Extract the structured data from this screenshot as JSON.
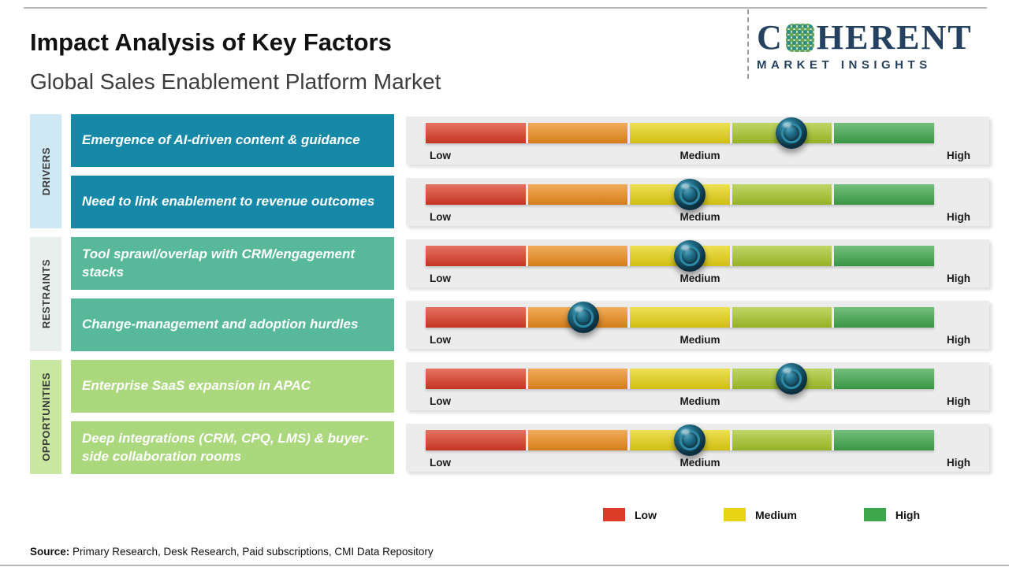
{
  "header": {
    "title": "Impact Analysis of Key Factors",
    "subtitle": "Global Sales Enablement Platform Market"
  },
  "logo": {
    "word_start": "C",
    "word_end": "HERENT",
    "tagline": "MARKET INSIGHTS",
    "brand_color": "#24415f"
  },
  "scale": {
    "low": "Low",
    "medium": "Medium",
    "high": "High"
  },
  "bar_colors": [
    "#dc3b26",
    "#ec8c1b",
    "#e8d414",
    "#a7c62a",
    "#3ea74b"
  ],
  "categories": [
    {
      "label": "DRIVERS",
      "strip_color": "#cfe9f4"
    },
    {
      "label": "RESTRAINTS",
      "strip_color": "#e9efec"
    },
    {
      "label": "OPPORTUNITIES",
      "strip_color": "#c9e7a1"
    }
  ],
  "rows": [
    {
      "group": "DRIVERS",
      "label": "Emergence of AI-driven content & guidance",
      "box_color": "#1789a8",
      "impact_pct": 72,
      "impact_level": "Medium-High"
    },
    {
      "group": "DRIVERS",
      "label": "Need to link enablement to revenue outcomes",
      "box_color": "#1789a8",
      "impact_pct": 52,
      "impact_level": "Medium"
    },
    {
      "group": "RESTRAINTS",
      "label": "Tool sprawl/overlap with CRM/engagement stacks",
      "box_color": "#57b999",
      "impact_pct": 52,
      "impact_level": "Medium"
    },
    {
      "group": "RESTRAINTS",
      "label": "Change-management and adoption hurdles",
      "box_color": "#57b999",
      "impact_pct": 31,
      "impact_level": "Low-Medium"
    },
    {
      "group": "OPPORTUNITIES",
      "label": "Enterprise SaaS expansion in APAC",
      "box_color": "#abd77d",
      "impact_pct": 72,
      "impact_level": "Medium-High"
    },
    {
      "group": "OPPORTUNITIES",
      "label": "Deep integrations (CRM, CPQ, LMS) & buyer-side collaboration rooms",
      "box_color": "#abd77d",
      "impact_pct": 52,
      "impact_level": "Medium"
    }
  ],
  "legend": [
    {
      "label": "Low",
      "color": "#dc3b26"
    },
    {
      "label": "Medium",
      "color": "#e8d414"
    },
    {
      "label": "High",
      "color": "#3ea74b"
    }
  ],
  "source": {
    "label": "Source:",
    "text": " Primary Research, Desk Research, Paid subscriptions, CMI Data Repository"
  },
  "chart_data": {
    "type": "bar",
    "subtype": "impact-scale",
    "title": "Impact Analysis of Key Factors",
    "subtitle": "Global Sales Enablement Platform Market",
    "scale_labels": [
      "Low",
      "Medium",
      "High"
    ],
    "axis_range_pct": [
      0,
      100
    ],
    "categories": [
      "Emergence of AI-driven content & guidance",
      "Need to link enablement to revenue outcomes",
      "Tool sprawl/overlap with CRM/engagement stacks",
      "Change-management and adoption hurdles",
      "Enterprise SaaS expansion in APAC",
      "Deep integrations (CRM, CPQ, LMS) & buyer-side collaboration rooms"
    ],
    "groups": [
      "DRIVERS",
      "DRIVERS",
      "RESTRAINTS",
      "RESTRAINTS",
      "OPPORTUNITIES",
      "OPPORTUNITIES"
    ],
    "values": [
      72,
      52,
      52,
      31,
      72,
      52
    ],
    "levels": [
      "Medium-High",
      "Medium",
      "Medium",
      "Low-Medium",
      "Medium-High",
      "Medium"
    ],
    "legend_position": "bottom"
  }
}
